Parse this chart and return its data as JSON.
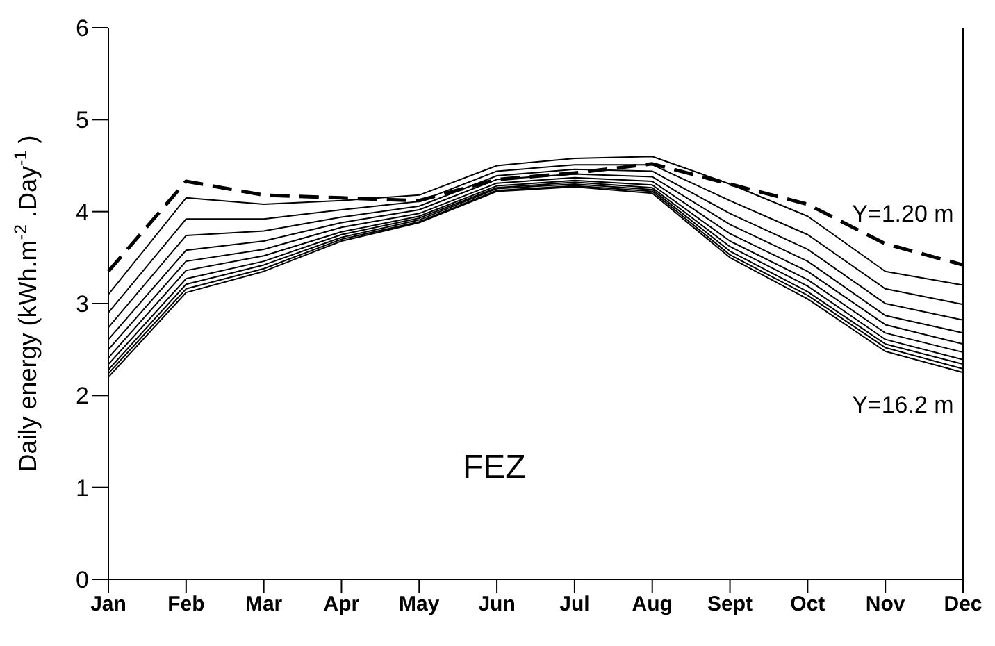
{
  "chart_data": {
    "type": "line",
    "ylabel": "Daily  energy (kWh.m$^{-2}$.Day$^{-1}$)",
    "annotations": [
      "FEZ"
    ],
    "categories": [
      "Jan",
      "Feb",
      "Mar",
      "Apr",
      "May",
      "Jun",
      "Jul",
      "Aug",
      "Sept",
      "Oct",
      "Nov",
      "Dec"
    ],
    "ylim": [
      0,
      6
    ],
    "yticks": [
      0,
      1,
      2,
      3,
      4,
      5,
      6
    ],
    "marker": "none",
    "line_style": "solid",
    "series": [
      {
        "name": "Y=1.20 m",
        "color": "#000000",
        "line_style": "dashed",
        "values": [
          3.35,
          4.33,
          4.18,
          4.15,
          4.12,
          4.35,
          4.42,
          4.52,
          4.3,
          4.08,
          3.65,
          3.42
        ]
      },
      {
        "color": "#000000",
        "values": [
          3.1,
          4.15,
          4.08,
          4.12,
          4.18,
          4.5,
          4.58,
          4.6,
          4.3,
          3.95,
          3.35,
          3.2
        ]
      },
      {
        "color": "#000000",
        "values": [
          2.9,
          3.92,
          3.92,
          4.02,
          4.11,
          4.44,
          4.51,
          4.51,
          4.12,
          3.75,
          3.16,
          2.99
        ]
      },
      {
        "color": "#000000",
        "values": [
          2.74,
          3.74,
          3.79,
          3.94,
          4.06,
          4.39,
          4.46,
          4.44,
          3.98,
          3.59,
          3.0,
          2.82
        ]
      },
      {
        "color": "#000000",
        "values": [
          2.61,
          3.58,
          3.68,
          3.88,
          4.02,
          4.35,
          4.41,
          4.38,
          3.86,
          3.46,
          2.87,
          2.68
        ]
      },
      {
        "color": "#000000",
        "values": [
          2.5,
          3.46,
          3.59,
          3.83,
          3.98,
          4.31,
          4.37,
          4.33,
          3.76,
          3.35,
          2.77,
          2.56
        ]
      },
      {
        "color": "#000000",
        "values": [
          2.41,
          3.36,
          3.52,
          3.78,
          3.95,
          4.28,
          4.34,
          4.29,
          3.68,
          3.26,
          2.68,
          2.47
        ]
      },
      {
        "color": "#000000",
        "values": [
          2.34,
          3.27,
          3.46,
          3.75,
          3.93,
          4.26,
          4.32,
          4.26,
          3.62,
          3.19,
          2.61,
          2.39
        ]
      },
      {
        "color": "#000000",
        "values": [
          2.28,
          3.21,
          3.42,
          3.72,
          3.91,
          4.25,
          4.3,
          4.24,
          3.57,
          3.13,
          2.56,
          2.34
        ]
      },
      {
        "color": "#000000",
        "values": [
          2.24,
          3.16,
          3.38,
          3.7,
          3.89,
          4.23,
          4.28,
          4.22,
          3.53,
          3.09,
          2.52,
          2.29
        ]
      },
      {
        "name": "Y=16.2 m",
        "color": "#000000",
        "values": [
          2.2,
          3.12,
          3.35,
          3.68,
          3.88,
          4.22,
          4.27,
          4.2,
          3.5,
          3.05,
          2.48,
          2.25
        ]
      }
    ]
  }
}
